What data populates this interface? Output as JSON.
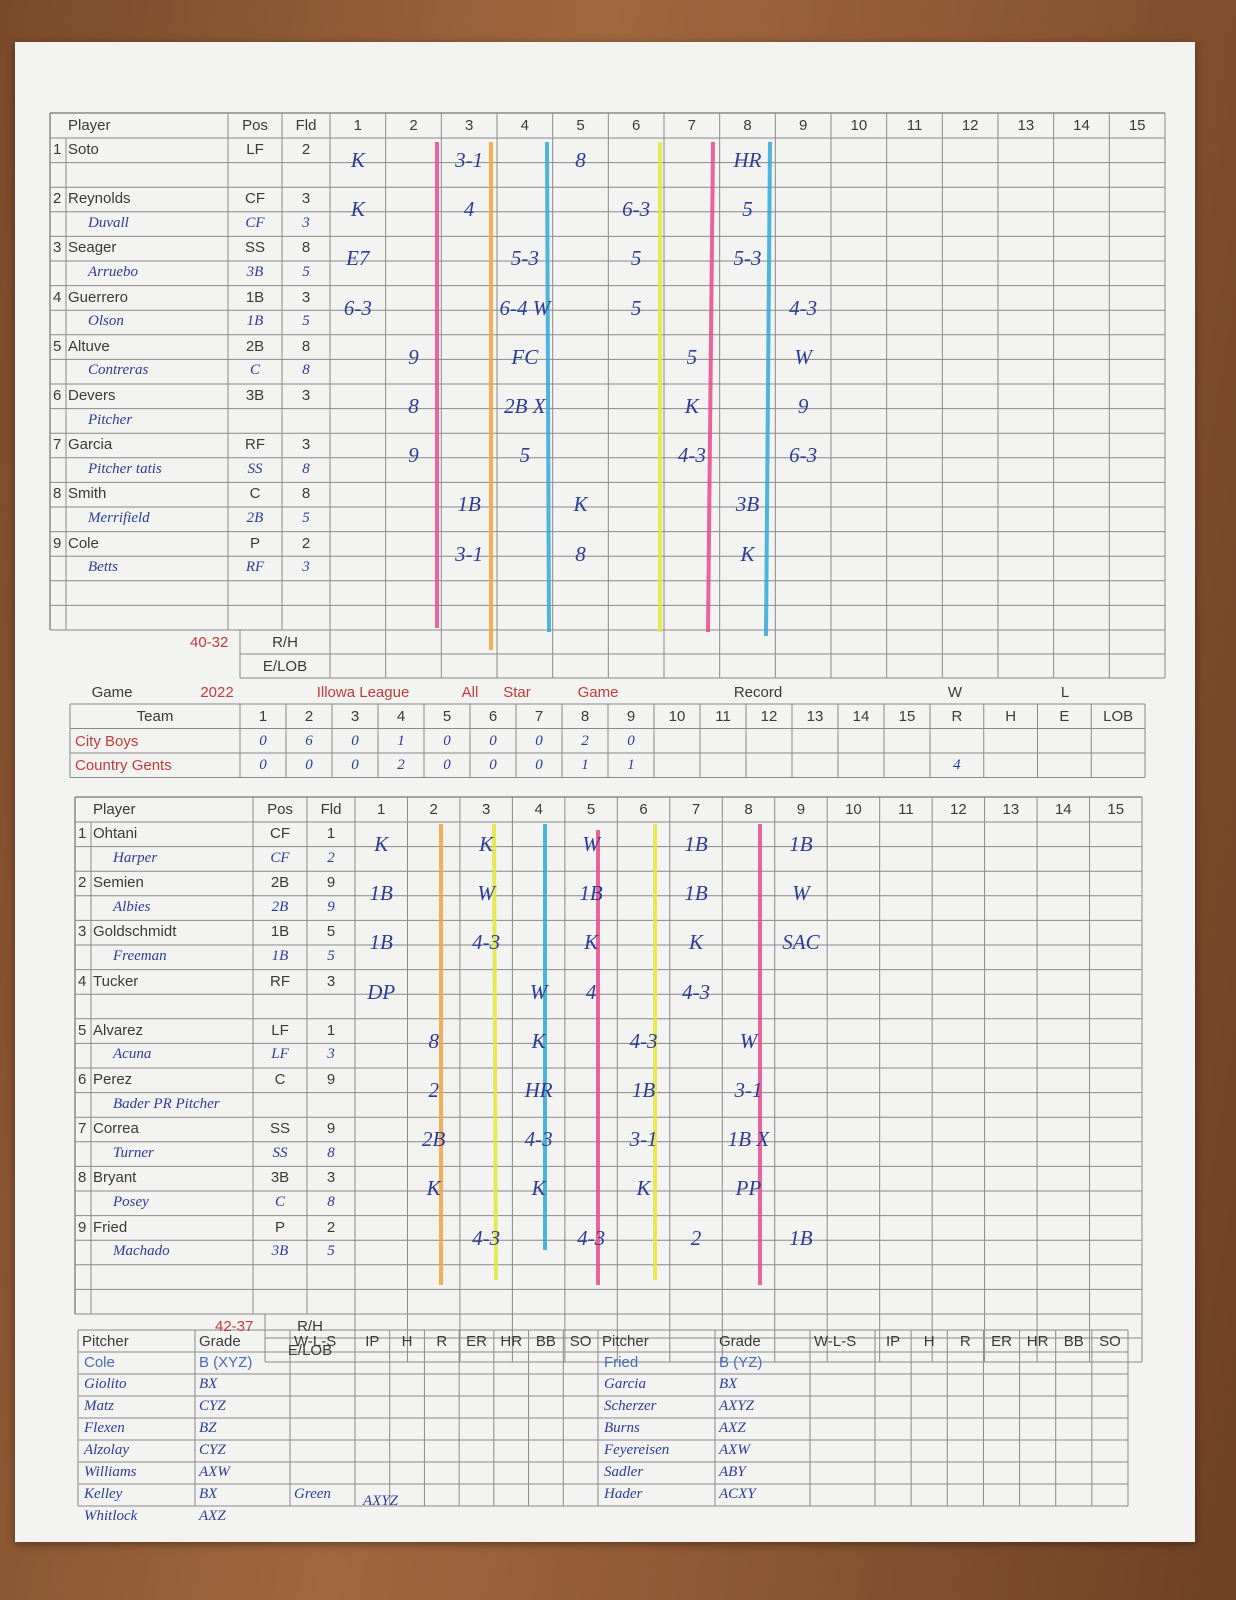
{
  "top_card": {
    "headers": [
      "Player",
      "Pos",
      "Fld",
      "1",
      "2",
      "3",
      "4",
      "5",
      "6",
      "7",
      "8",
      "9",
      "10",
      "11",
      "12",
      "13",
      "14",
      "15"
    ],
    "lineup": [
      {
        "num": "1",
        "player": "Soto",
        "pos": "LF",
        "fld": "2",
        "plays": {
          "1": "K",
          "3": "3-1",
          "5": "8",
          "8": "HR"
        }
      },
      {
        "num": "2",
        "player": "Reynolds",
        "pos": "CF",
        "fld": "3",
        "sub": {
          "player": "Duvall",
          "pos": "CF",
          "fld": "3"
        },
        "plays": {
          "1": "K",
          "3": "4",
          "6": "6-3",
          "8": "5"
        }
      },
      {
        "num": "3",
        "player": "Seager",
        "pos": "SS",
        "fld": "8",
        "sub": {
          "player": "Arruebo",
          "pos": "3B",
          "fld": "5"
        },
        "plays": {
          "1": "E7",
          "4": "5-3",
          "6": "5",
          "8": "5-3"
        }
      },
      {
        "num": "4",
        "player": "Guerrero",
        "pos": "1B",
        "fld": "3",
        "sub": {
          "player": "Olson",
          "pos": "1B",
          "fld": "5"
        },
        "plays": {
          "1": "6-3",
          "4": "6-4 W",
          "6": "5",
          "9": "4-3"
        }
      },
      {
        "num": "5",
        "player": "Altuve",
        "pos": "2B",
        "fld": "8",
        "sub": {
          "player": "Contreras",
          "pos": "C",
          "fld": "8"
        },
        "plays": {
          "2": "9",
          "4": "FC",
          "7": "5",
          "9": "W"
        }
      },
      {
        "num": "6",
        "player": "Devers",
        "pos": "3B",
        "fld": "3",
        "sub": {
          "player": "Pitcher"
        },
        "plays": {
          "2": "8",
          "4": "2B X",
          "7": "K",
          "9": "9"
        }
      },
      {
        "num": "7",
        "player": "Garcia",
        "pos": "RF",
        "fld": "3",
        "sub": {
          "player": "Pitcher tatis",
          "pos": "SS",
          "fld": "8"
        },
        "plays": {
          "2": "9",
          "4": "5",
          "7": "4-3",
          "9": "6-3"
        }
      },
      {
        "num": "8",
        "player": "Smith",
        "pos": "C",
        "fld": "8",
        "sub": {
          "player": "Merrifield",
          "pos": "2B",
          "fld": "5"
        },
        "plays": {
          "3": "1B",
          "5": "K",
          "8": "3B"
        }
      },
      {
        "num": "9",
        "player": "Cole",
        "pos": "P",
        "fld": "2",
        "sub": {
          "player": "Betts",
          "pos": "RF",
          "fld": "3"
        },
        "plays": {
          "3": "3-1",
          "5": "8",
          "8": "K"
        }
      }
    ],
    "record": "40-32",
    "rh": "R/H",
    "elob": "E/LOB"
  },
  "game_info": [
    {
      "text": "Game"
    },
    {
      "text": "2022",
      "color": "#c23b3b"
    },
    {
      "text": "Illowa League",
      "color": "#c23b3b"
    },
    {
      "text": "All",
      "color": "#c23b3b"
    },
    {
      "text": "Star",
      "color": "#c23b3b"
    },
    {
      "text": "Game",
      "color": "#c23b3b"
    },
    {
      "text": "Record"
    },
    {
      "text": "W"
    },
    {
      "text": "L"
    }
  ],
  "line_score": {
    "headers": [
      "Team",
      "1",
      "2",
      "3",
      "4",
      "5",
      "6",
      "7",
      "8",
      "9",
      "10",
      "11",
      "12",
      "13",
      "14",
      "15",
      "R",
      "H",
      "E",
      "LOB"
    ],
    "teams": [
      {
        "name": "City Boys",
        "cells": {
          "1": "0",
          "2": "6",
          "3": "0",
          "4": "1",
          "5": "0",
          "6": "0",
          "7": "0",
          "8": "2",
          "9": "0"
        }
      },
      {
        "name": "Country Gents",
        "cells": {
          "1": "0",
          "2": "0",
          "3": "0",
          "4": "2",
          "5": "0",
          "6": "0",
          "7": "0",
          "8": "1",
          "9": "1",
          "R": "4"
        }
      }
    ]
  },
  "bottom_card": {
    "headers": [
      "Player",
      "Pos",
      "Fld",
      "1",
      "2",
      "3",
      "4",
      "5",
      "6",
      "7",
      "8",
      "9",
      "10",
      "11",
      "12",
      "13",
      "14",
      "15"
    ],
    "lineup": [
      {
        "num": "1",
        "player": "Ohtani",
        "pos": "CF",
        "fld": "1",
        "sub": {
          "player": "Harper",
          "pos": "CF",
          "fld": "2"
        },
        "plays": {
          "1": "K",
          "3": "K",
          "5": "W",
          "7": "1B",
          "9": "1B"
        }
      },
      {
        "num": "2",
        "player": "Semien",
        "pos": "2B",
        "fld": "9",
        "sub": {
          "player": "Albies",
          "pos": "2B",
          "fld": "9"
        },
        "plays": {
          "1": "1B",
          "3": "W",
          "5": "1B",
          "7": "1B",
          "9": "W"
        }
      },
      {
        "num": "3",
        "player": "Goldschmidt",
        "pos": "1B",
        "fld": "5",
        "sub": {
          "player": "Freeman",
          "pos": "1B",
          "fld": "5"
        },
        "plays": {
          "1": "1B",
          "3": "4-3",
          "5": "K",
          "7": "K",
          "9": "SAC"
        }
      },
      {
        "num": "4",
        "player": "Tucker",
        "pos": "RF",
        "fld": "3",
        "plays": {
          "1": "DP",
          "4": "W",
          "5": "4",
          "7": "4-3"
        }
      },
      {
        "num": "5",
        "player": "Alvarez",
        "pos": "LF",
        "fld": "1",
        "sub": {
          "player": "Acuna",
          "pos": "LF",
          "fld": "3"
        },
        "plays": {
          "2": "8",
          "4": "K",
          "6": "4-3",
          "8": "W"
        }
      },
      {
        "num": "6",
        "player": "Perez",
        "pos": "C",
        "fld": "9",
        "sub": {
          "player": "Bader PR Pitcher"
        },
        "plays": {
          "2": "2",
          "4": "HR",
          "6": "1B",
          "8": "3-1"
        }
      },
      {
        "num": "7",
        "player": "Correa",
        "pos": "SS",
        "fld": "9",
        "sub": {
          "player": "Turner",
          "pos": "SS",
          "fld": "8"
        },
        "plays": {
          "2": "2B",
          "4": "4-3",
          "6": "3-1",
          "8": "1B X"
        }
      },
      {
        "num": "8",
        "player": "Bryant",
        "pos": "3B",
        "fld": "3",
        "sub": {
          "player": "Posey",
          "pos": "C",
          "fld": "8"
        },
        "plays": {
          "2": "K",
          "4": "K",
          "6": "K",
          "8": "PP"
        }
      },
      {
        "num": "9",
        "player": "Fried",
        "pos": "P",
        "fld": "2",
        "sub": {
          "player": "Machado",
          "pos": "3B",
          "fld": "5"
        },
        "plays": {
          "3": "4-3",
          "5": "4-3",
          "7": "2",
          "9": "1B"
        }
      }
    ],
    "record": "42-37",
    "rh": "R/H",
    "elob": "E/LOB"
  },
  "pitchers": {
    "headers": [
      "Pitcher",
      "Grade",
      "W-L-S",
      "IP",
      "H",
      "R",
      "ER",
      "HR",
      "BB",
      "SO"
    ],
    "left": [
      {
        "name": "Cole",
        "grade": "B (XYZ)"
      },
      {
        "name": "Giolito",
        "grade": "BX"
      },
      {
        "name": "Matz",
        "grade": "CYZ"
      },
      {
        "name": "Flexen",
        "grade": "BZ"
      },
      {
        "name": "Alzolay",
        "grade": "CYZ"
      },
      {
        "name": "Williams",
        "grade": "AXW"
      },
      {
        "name": "Kelley",
        "grade": "BX"
      },
      {
        "name": "Whitlock",
        "grade": "AXZ"
      }
    ],
    "extra": {
      "name": "Green",
      "grade": "AXYZ"
    },
    "right": [
      {
        "name": "Fried",
        "grade": "B (YZ)"
      },
      {
        "name": "Garcia",
        "grade": "BX"
      },
      {
        "name": "Scherzer",
        "grade": "AXYZ"
      },
      {
        "name": "Burns",
        "grade": "AXZ"
      },
      {
        "name": "Feyereisen",
        "grade": "AXW"
      },
      {
        "name": "Sadler",
        "grade": "ABY"
      },
      {
        "name": "Hader",
        "grade": "ACXY"
      }
    ]
  }
}
